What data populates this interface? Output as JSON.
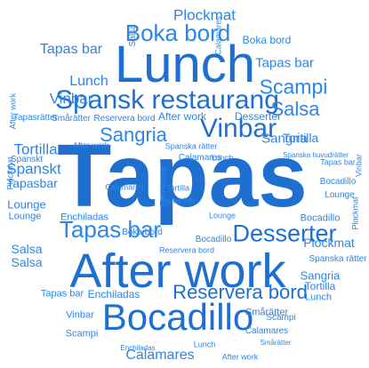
{
  "colors": {
    "primary": "#1f6fd1",
    "secondary": "#2b86e6",
    "light": "#3e9cf0"
  },
  "words": [
    "Tapas",
    "Lunch",
    "After work",
    "Bocadillo",
    "Spansk restaurang",
    "Vinbar",
    "Sangria",
    "Boka bord",
    "Desserter",
    "Tapas bar",
    "Salsa",
    "Scampi",
    "Reservera bord",
    "Tortilla",
    "Spanskt",
    "Plockmat",
    "Calamares",
    "Enchiladas",
    "Lounge",
    "Tapasbar",
    "Spanska rätter",
    "Spanska huvudrätter",
    "Smårätter",
    "Tapasrätter"
  ]
}
